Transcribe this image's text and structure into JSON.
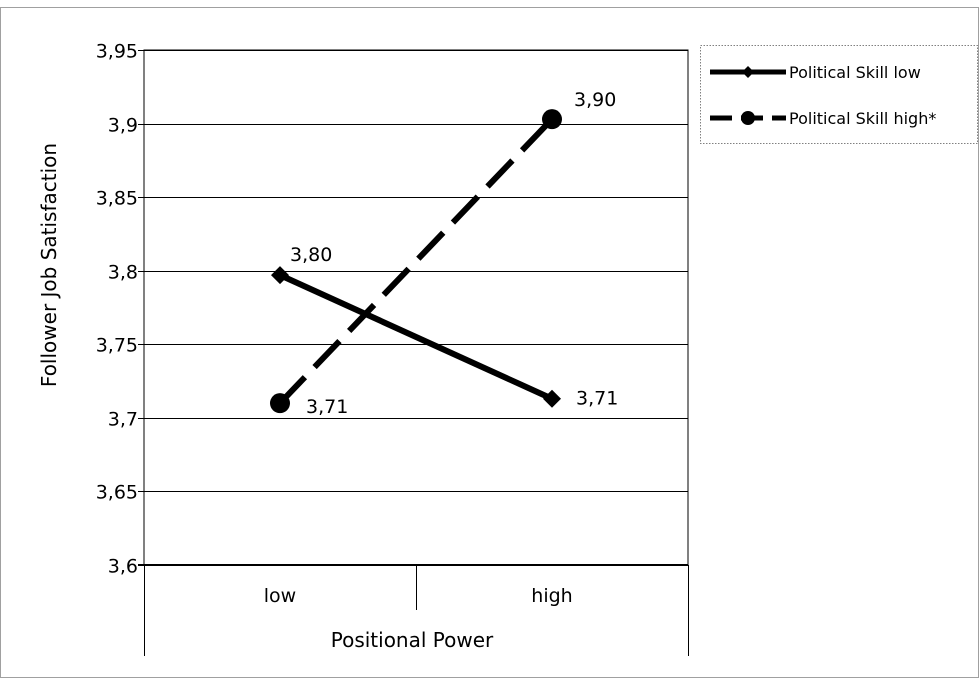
{
  "chart_data": {
    "type": "line",
    "title": "",
    "xlabel": "Positional Power",
    "ylabel": "Follower  Job Satisfaction",
    "categories": [
      "low",
      "high"
    ],
    "ylim": [
      3.6,
      3.95
    ],
    "yticks": [
      "3,6",
      "3,65",
      "3,7",
      "3,75",
      "3,8",
      "3,85",
      "3,9",
      "3,95"
    ],
    "ytick_values": [
      3.6,
      3.65,
      3.7,
      3.75,
      3.8,
      3.85,
      3.9,
      3.95
    ],
    "grid": true,
    "legend_position": "right",
    "series": [
      {
        "name": "Political Skill low",
        "values": [
          3.797,
          3.713
        ],
        "labels": [
          "3,80",
          "3,71"
        ],
        "marker": "diamond",
        "style": "solid",
        "color": "#000000"
      },
      {
        "name": "Political Skill high*",
        "values": [
          3.71,
          3.903
        ],
        "labels": [
          "3,71",
          "3,90"
        ],
        "marker": "circle",
        "style": "dashed",
        "color": "#000000"
      }
    ]
  }
}
